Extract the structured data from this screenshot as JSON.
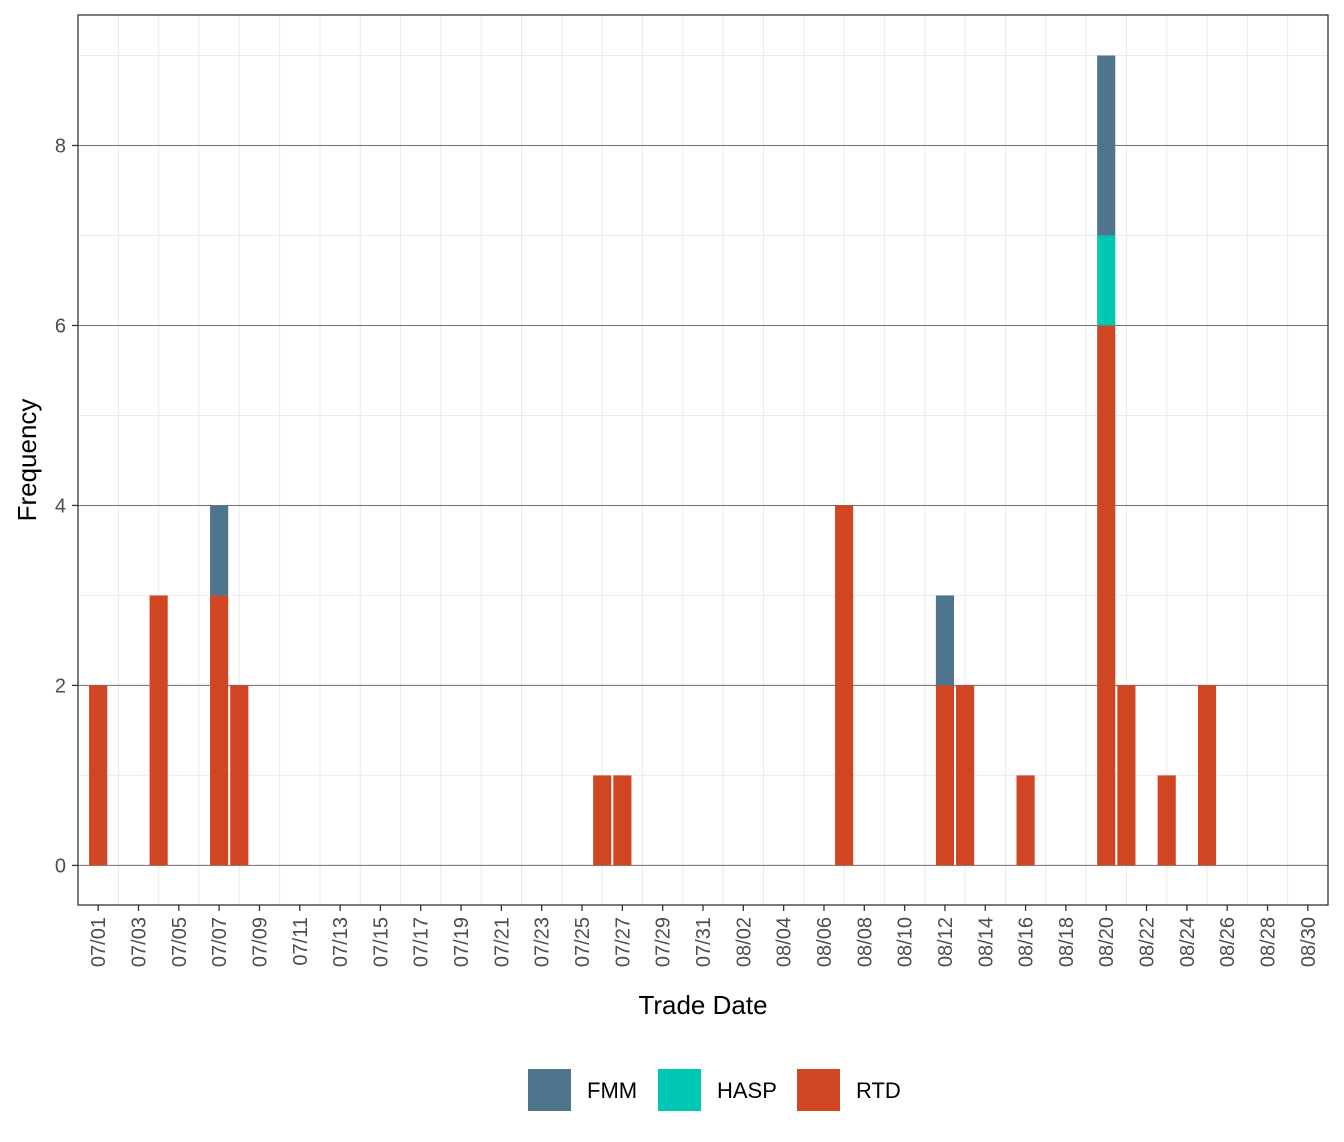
{
  "chart_data": {
    "type": "bar",
    "stacked": true,
    "xlabel": "Trade Date",
    "ylabel": "Frequency",
    "x_range": [
      "06/30",
      "08/31"
    ],
    "ylim": [
      -0.44,
      9.45
    ],
    "y_ticks": [
      0,
      2,
      4,
      6,
      8
    ],
    "x_ticks": [
      "07/01",
      "07/03",
      "07/05",
      "07/07",
      "07/09",
      "07/11",
      "07/13",
      "07/15",
      "07/17",
      "07/19",
      "07/21",
      "07/23",
      "07/25",
      "07/27",
      "07/29",
      "07/31",
      "08/02",
      "08/04",
      "08/06",
      "08/08",
      "08/10",
      "08/12",
      "08/14",
      "08/16",
      "08/18",
      "08/20",
      "08/22",
      "08/24",
      "08/26",
      "08/28",
      "08/30"
    ],
    "grid": true,
    "legend_position": "bottom",
    "colors": {
      "FMM": "#4e758c",
      "HASP": "#00c6b4",
      "RTD": "#d04522"
    },
    "stack_order": [
      "RTD",
      "HASP",
      "FMM"
    ],
    "categories": [
      "07/01",
      "07/04",
      "07/07",
      "07/08",
      "07/26",
      "07/27",
      "08/07",
      "08/12",
      "08/13",
      "08/16",
      "08/20",
      "08/21",
      "08/23",
      "08/25"
    ],
    "series": [
      {
        "name": "FMM",
        "values": [
          0,
          0,
          1,
          0,
          0,
          0,
          0,
          1,
          0,
          0,
          2,
          0,
          0,
          0
        ]
      },
      {
        "name": "HASP",
        "values": [
          0,
          0,
          0,
          0,
          0,
          0,
          0,
          0,
          0,
          0,
          1,
          0,
          0,
          0
        ]
      },
      {
        "name": "RTD",
        "values": [
          2,
          3,
          3,
          2,
          1,
          1,
          4,
          2,
          2,
          1,
          6,
          2,
          1,
          2
        ]
      }
    ],
    "legend": [
      "FMM",
      "HASP",
      "RTD"
    ]
  }
}
